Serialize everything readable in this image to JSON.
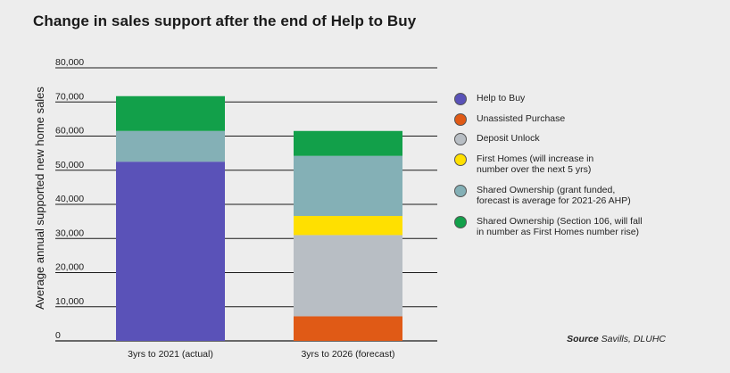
{
  "title": "Change in sales support after the end of Help to Buy",
  "source": {
    "label": "Source",
    "text": "Savills, DLUHC"
  },
  "colors": {
    "help_to_buy": "#5a52b8",
    "unassisted": "#e05a16",
    "deposit_unlock": "#b8bec4",
    "first_homes": "#ffe000",
    "shared_grant": "#84b0b6",
    "shared_s106": "#12a04a"
  },
  "chart_data": {
    "type": "bar",
    "stacked": true,
    "categories": [
      "3yrs to 2021 (actual)",
      "3yrs to 2026 (forecast)"
    ],
    "ylabel": "Average annual supported new home sales",
    "ylim": [
      0,
      80000
    ],
    "yticks": [
      "0",
      "10,000",
      "20,000",
      "30,000",
      "40,000",
      "50,000",
      "60,000",
      "70,000",
      "80,000"
    ],
    "grid": true,
    "legend_position": "right",
    "series": [
      {
        "name": "Help to Buy",
        "color_key": "help_to_buy",
        "values": [
          52500,
          0
        ]
      },
      {
        "name": "Unassisted Purchase",
        "color_key": "unassisted",
        "values": [
          0,
          7200
        ]
      },
      {
        "name": "Deposit Unlock",
        "color_key": "deposit_unlock",
        "values": [
          0,
          23800
        ]
      },
      {
        "name": "First Homes (will increase in number over the next 5 yrs)",
        "color_key": "first_homes",
        "values": [
          0,
          5600
        ]
      },
      {
        "name": "Shared Ownership (grant funded, forecast is average for 2021-26 AHP)",
        "color_key": "shared_grant",
        "values": [
          9000,
          17600
        ]
      },
      {
        "name": "Shared Ownership (Section 106, will fall in number as First Homes number rise)",
        "color_key": "shared_s106",
        "values": [
          10200,
          7300
        ]
      }
    ]
  }
}
